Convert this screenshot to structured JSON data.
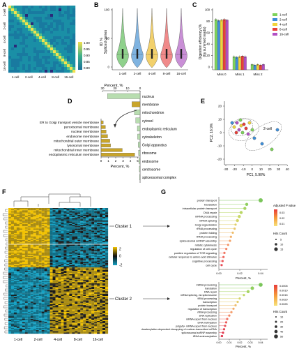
{
  "panels": {
    "A": {
      "letter": "A",
      "cell_labels": [
        "1-cell",
        "2-cell",
        "4-cell",
        "8-cell",
        "16-cell"
      ],
      "row_labels": [
        "1-cell",
        "2-cell",
        "4-cell",
        "8-cell",
        "16-cell"
      ],
      "scale_labels": [
        "1.00",
        "0.95",
        "0.90",
        "0.85",
        "0.80"
      ],
      "colors": {
        "low": "#1b8ea0",
        "high": "#f4e04d",
        "dark": "#2a2a7a"
      }
    },
    "B": {
      "letter": "B",
      "ylabel": "ID %",
      "ylabel2": "Spliced genes",
      "y_ticks": [
        "100",
        "50",
        "0"
      ],
      "groups": [
        "1-cell",
        "2-cell",
        "4-cell",
        "8-cell",
        "16-cell"
      ],
      "violin_colors": [
        "#8fd18c",
        "#7fb3e0",
        "#f2d06b",
        "#f08a8a",
        "#c98fd6"
      ]
    },
    "C": {
      "letter": "C",
      "ylabel": "Digestion efficiency (%",
      "ylabel2": "(by summed reads)",
      "y_ticks": [
        "100",
        "80",
        "60",
        "40",
        "20",
        "0"
      ],
      "categories": [
        "Miss 0",
        "Miss 1",
        "Miss 2"
      ],
      "series": [
        {
          "name": "1-cell",
          "color": "#7ed35a"
        },
        {
          "name": "2-cell",
          "color": "#3f8fd9"
        },
        {
          "name": "4-cell",
          "color": "#f2d43a"
        },
        {
          "name": "8-cell",
          "color": "#e8403a"
        },
        {
          "name": "16-cell",
          "color": "#b24fc4"
        }
      ]
    },
    "D": {
      "letter": "D",
      "top_axis_label": "Percent, %",
      "top_ticks": [
        "30",
        "20",
        "10",
        "0"
      ],
      "top_categories": [
        "nucleus",
        "membrane",
        "mitochondrion",
        "cytosol",
        "endoplasmic reticulum",
        "cytoskeleton",
        "Golgi apparatus",
        "ribosome",
        "endosome",
        "centrosome",
        "spliceosomal complex"
      ],
      "left_categories": [
        "ER to Golgi transport vesicle membrane",
        "peroxisomal membrane",
        "nuclear membrane",
        "endosome membrane",
        "mitochondrial outer membrane",
        "lysosomal membrane",
        "mitochondrial inner membrane",
        "endoplasmic reticulum membrane"
      ],
      "bottom_axis_label": "Percent, %",
      "bottom_ticks": [
        "0",
        "1",
        "2",
        "3",
        "4",
        "5"
      ],
      "colors": {
        "top": "#b8ddb0",
        "bottom": "#c9a52a"
      }
    },
    "E": {
      "letter": "E",
      "xlabel": "PC1, 5.90%",
      "ylabel": "PC2, 16.9%",
      "x_ticks": [
        "-30",
        "-20",
        "-10",
        "0",
        "10",
        "20",
        "30",
        "40"
      ],
      "y_ticks": [
        "20",
        "10",
        "0",
        "-10",
        "-20"
      ],
      "ellipse_label": "2-cell"
    },
    "F": {
      "letter": "F",
      "groups": [
        "1-cell",
        "2-cell",
        "4-cell",
        "8-cell",
        "16-cell"
      ],
      "clusters": [
        "Cluster 1",
        "Cluster 2"
      ],
      "scale_labels": [
        "2",
        "0",
        "-2"
      ],
      "colors": {
        "hi": "#f2c200",
        "mid": "#111111",
        "lo": "#15a2c4"
      }
    },
    "G": {
      "letter": "G",
      "cluster1_terms": [
        "protein transport",
        "translation",
        "intracellular protein transport",
        "DNA repair",
        "mRNA processing",
        "mRNA splicing",
        "Golgi organization",
        "rRNA processing",
        "protein folding",
        "tRNA processing",
        "spliceosomal snRNP assembly",
        "mitotic cytokinesis",
        "regulation of cell cycle",
        "positive regulation of TOR signaling",
        "cellular response to amino acid stimulus",
        "cognitive processing",
        "cell cycle"
      ],
      "cluster2_terms": [
        "mRNA processing",
        "translation",
        "DNA repair",
        "mRNA splicing, via spliceosome",
        "tRNA processing",
        "transcription",
        "protein transport",
        "regulation of transcription",
        "rRNA processing",
        "DNA replication",
        "mRNA export from nucleus",
        "DNA methylation",
        "poly(A)+ mRNA export from nucleus",
        "deadenylation-dependent decapping of nuclear-transcribed mRNA",
        "spliceosomal snRNP assembly",
        "tRNA aminoacylation"
      ],
      "x_label": "Percent, %",
      "x_ticks_top": [
        "0.00",
        "0.02",
        "0.04"
      ],
      "x_ticks_bottom": [
        "0.00",
        "0.01",
        "0.02",
        "0.03",
        "0.04"
      ],
      "legend1_title": "Adjusted P value",
      "legend1_values": [
        "0.03",
        "0.02",
        "0.01"
      ],
      "legend1_count_title": "Hits Count",
      "legend1_counts": [
        "5",
        "10",
        "15"
      ],
      "legend2_values": [
        "0.0005",
        "0.0010",
        "0.0015",
        "0.0020",
        "0.0025"
      ],
      "legend2_count_title": "Hits Count",
      "legend2_counts": [
        "10",
        "20",
        "30",
        "40",
        "50"
      ]
    }
  }
}
